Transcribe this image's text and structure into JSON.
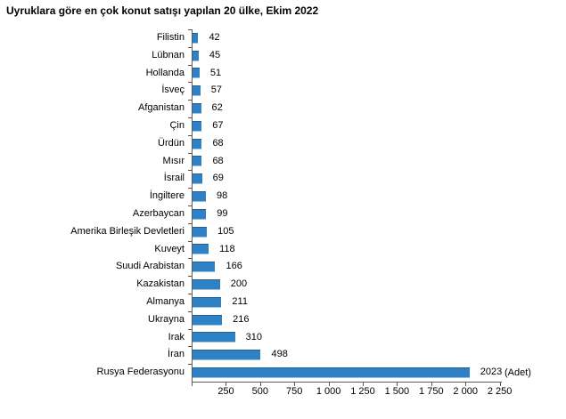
{
  "chart_data": {
    "type": "bar",
    "orientation": "horizontal",
    "title": "Uyruklara göre en çok konut satışı yapılan 20 ülke, Ekim 2022",
    "xlabel": "(Adet)",
    "ylabel": "",
    "xlim": [
      0,
      2250
    ],
    "x_tick_values": [
      250,
      500,
      750,
      1000,
      1250,
      1500,
      1750,
      2000,
      2250
    ],
    "x_tick_labels": [
      "250",
      "500",
      "750",
      "1 000",
      "1 250",
      "1 500",
      "1 750",
      "2 000",
      "2 250"
    ],
    "grid": false,
    "legend": false,
    "bar_color": "#2e81c4",
    "axis_color": "#595959",
    "categories": [
      "Filistin",
      "Lübnan",
      "Hollanda",
      "İsveç",
      "Afganistan",
      "Çin",
      "Ürdün",
      "Mısır",
      "İsrail",
      "İngiltere",
      "Azerbaycan",
      "Amerika Birleşik Devletleri",
      "Kuveyt",
      "Suudi Arabistan",
      "Kazakistan",
      "Almanya",
      "Ukrayna",
      "Irak",
      "İran",
      "Rusya Federasyonu"
    ],
    "values": [
      42,
      45,
      51,
      57,
      62,
      67,
      68,
      68,
      69,
      98,
      99,
      105,
      118,
      166,
      200,
      211,
      216,
      310,
      498,
      2023
    ]
  }
}
